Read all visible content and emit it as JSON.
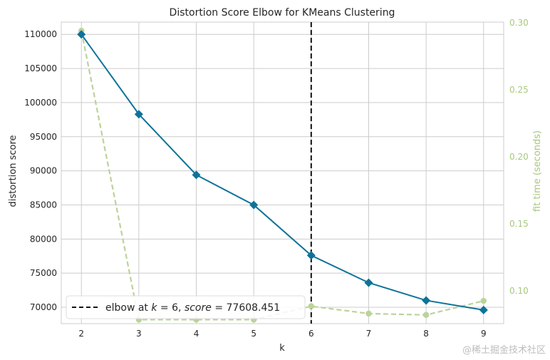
{
  "chart_data": {
    "type": "line",
    "title": "Distortion Score Elbow for KMeans Clustering",
    "xlabel": "k",
    "ylabel": "distortion score",
    "ylabel_right": "fit time (seconds)",
    "x": [
      2,
      3,
      4,
      5,
      6,
      7,
      8,
      9
    ],
    "xlim": [
      1.65,
      9.35
    ],
    "ylim": [
      67600,
      111800
    ],
    "ylim_right": [
      0.0755,
      0.3005
    ],
    "yticks": [
      70000,
      75000,
      80000,
      85000,
      90000,
      95000,
      100000,
      105000,
      110000
    ],
    "yticks_right": [
      0.1,
      0.15,
      0.2,
      0.25,
      0.3
    ],
    "yticks_right_labels": [
      "0.10",
      "0.15",
      "0.20",
      "0.25",
      "0.30"
    ],
    "grid": true,
    "series": [
      {
        "axis": "left",
        "values": [
          110000,
          98300,
          89400,
          85000,
          77608,
          73600,
          71000,
          69600
        ],
        "color": "#0e7399",
        "marker": "diamond",
        "style": "solid"
      },
      {
        "axis": "right",
        "values": [
          0.294,
          0.0785,
          0.0785,
          0.0785,
          0.0885,
          0.083,
          0.082,
          0.0925
        ],
        "color": "#bbd39a",
        "marker": "circle",
        "style": "dashed"
      }
    ],
    "elbow": {
      "x": 6,
      "score": 77608.451,
      "color": "#111111",
      "style": "dashed"
    },
    "legend": {
      "placement": "lower-left",
      "label_prefix": "elbow at ",
      "k_symbol": "k",
      "k_eq": " = 6, ",
      "score_symbol": "score",
      "score_eq": " = 77608.451"
    }
  },
  "watermark": "@稀土掘金技术社区"
}
